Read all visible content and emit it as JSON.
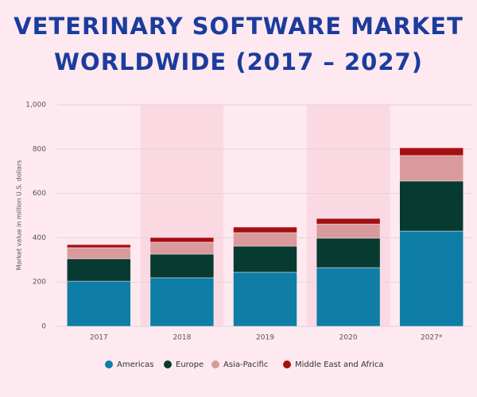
{
  "chart_data": {
    "type": "bar",
    "stacked": true,
    "title": [
      "VETERINARY SOFTWARE MARKET",
      "WORLDWIDE (2017 – 2027)"
    ],
    "y_label": "Market value in million U.S. dollars",
    "categories": [
      "2017",
      "2018",
      "2019",
      "2020",
      "2027*"
    ],
    "series": [
      {
        "name": "Americas",
        "color": "#0e7ea6",
        "values": [
          204,
          219,
          244,
          265,
          430
        ]
      },
      {
        "name": "Europe",
        "color": "#073a31",
        "values": [
          101,
          107,
          118,
          133,
          226
        ]
      },
      {
        "name": "Asia-Pacific",
        "color": "#d99a9b",
        "values": [
          50,
          54,
          61,
          64,
          115
        ]
      },
      {
        "name": "Middle East and Africa",
        "color": "#a50f12",
        "values": [
          14,
          21,
          25,
          25,
          35
        ]
      }
    ],
    "ylim": [
      0,
      1000
    ],
    "yticks": [
      0,
      200,
      400,
      600,
      800,
      {
        "value": 1000,
        "label": "1,000"
      }
    ],
    "grid": true
  }
}
